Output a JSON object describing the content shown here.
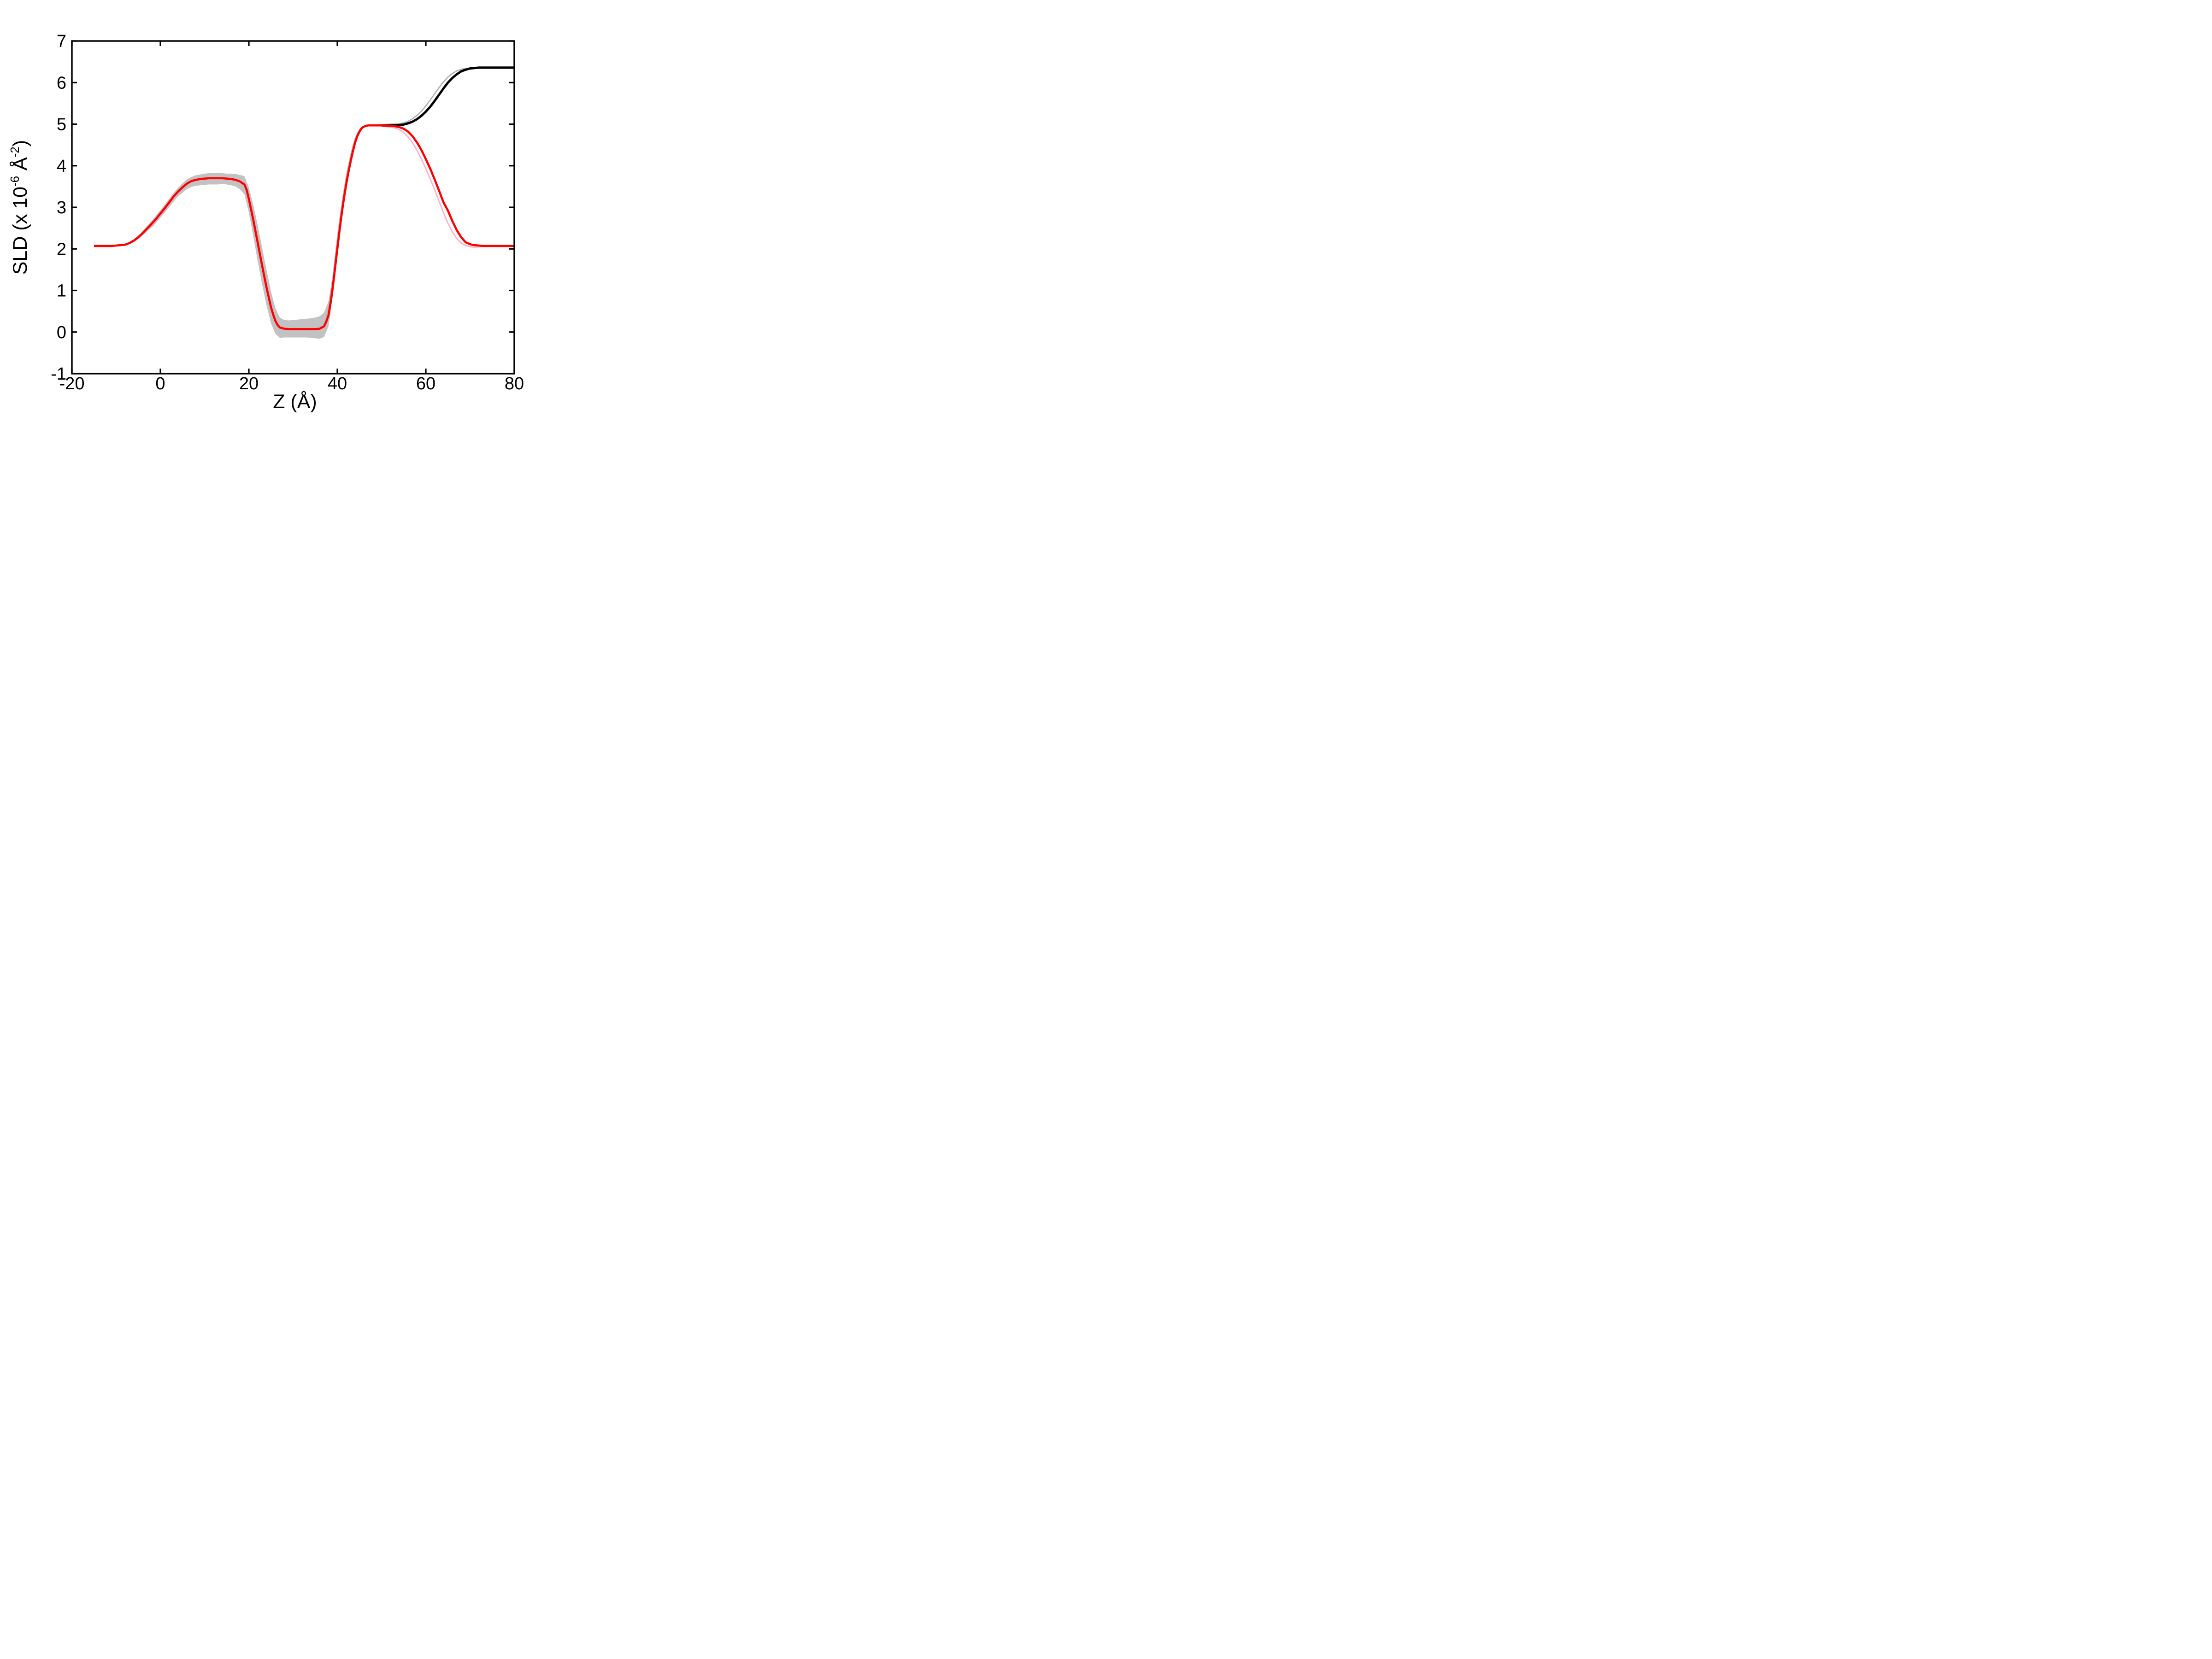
{
  "chart_data": {
    "type": "line",
    "title": "",
    "xlabel": "Z (Å)",
    "ylabel": "SLD (x 10-6 Å-2)",
    "ylabel_parts": {
      "prefix": "SLD (x 10",
      "sup1": "-6",
      "mid": " Å",
      "sup2": "-2",
      "suffix": ")"
    },
    "xlim": [
      -20,
      80
    ],
    "ylim": [
      -1,
      7
    ],
    "xticks": [
      -20,
      0,
      20,
      40,
      60,
      80
    ],
    "yticks": [
      -1,
      0,
      1,
      2,
      3,
      4,
      5,
      6,
      7
    ],
    "grid": false,
    "legend": null,
    "colors": {
      "red_profile": "#ff0000",
      "black_profile": "#000000",
      "pink_alt_profile": "#ffb0c4",
      "gray_alt_profile": "#b3b3b3",
      "uncertainty_band": "#c2c2c2",
      "axis": "#000000"
    },
    "band": {
      "x": [
        -8,
        -7,
        -6,
        -5,
        -4,
        -3,
        -2,
        -1,
        0,
        1,
        2,
        3,
        4,
        5,
        6,
        7,
        8,
        9,
        10,
        11,
        12,
        13,
        14,
        15,
        16,
        17,
        18,
        19,
        20,
        21,
        22,
        23,
        24,
        25,
        26,
        27,
        28,
        29,
        30,
        31,
        32,
        33,
        34,
        35,
        36,
        37,
        38,
        39,
        40,
        41,
        42,
        43,
        44
      ],
      "upper": [
        2.12,
        2.17,
        2.23,
        2.32,
        2.43,
        2.55,
        2.67,
        2.8,
        2.93,
        3.07,
        3.21,
        3.35,
        3.47,
        3.58,
        3.67,
        3.73,
        3.77,
        3.79,
        3.81,
        3.82,
        3.82,
        3.82,
        3.82,
        3.81,
        3.81,
        3.8,
        3.78,
        3.75,
        3.48,
        3.06,
        2.57,
        2.03,
        1.49,
        0.98,
        0.57,
        0.35,
        0.29,
        0.28,
        0.29,
        0.3,
        0.31,
        0.32,
        0.33,
        0.35,
        0.38,
        0.47,
        0.74,
        1.4,
        2.24,
        3.02,
        3.66,
        4.16,
        4.58
      ],
      "lower": [
        2.08,
        2.11,
        2.16,
        2.23,
        2.32,
        2.42,
        2.51,
        2.62,
        2.75,
        2.87,
        3.01,
        3.14,
        3.26,
        3.35,
        3.44,
        3.49,
        3.52,
        3.53,
        3.54,
        3.55,
        3.55,
        3.55,
        3.56,
        3.55,
        3.53,
        3.5,
        3.43,
        3.31,
        2.88,
        2.31,
        1.71,
        1.15,
        0.64,
        0.21,
        -0.04,
        -0.14,
        -0.13,
        -0.13,
        -0.13,
        -0.13,
        -0.13,
        -0.13,
        -0.14,
        -0.15,
        -0.16,
        -0.12,
        0.14,
        0.88,
        1.83,
        2.73,
        3.47,
        4.05,
        4.53
      ]
    },
    "series": [
      {
        "name": "gray-alt-profile",
        "color": "#b3b3b3",
        "width": 2.8,
        "points": [
          [
            37,
            0.2
          ],
          [
            37.5,
            0.32
          ],
          [
            38,
            0.55
          ],
          [
            38.5,
            0.9
          ],
          [
            39,
            1.3
          ],
          [
            39.5,
            1.77
          ],
          [
            40,
            2.22
          ],
          [
            40.5,
            2.65
          ],
          [
            41,
            3.03
          ],
          [
            41.5,
            3.38
          ],
          [
            42,
            3.7
          ],
          [
            42.5,
            3.98
          ],
          [
            43,
            4.22
          ],
          [
            43.5,
            4.45
          ],
          [
            44,
            4.63
          ],
          [
            44.5,
            4.77
          ],
          [
            45,
            4.86
          ],
          [
            45.5,
            4.92
          ],
          [
            46,
            4.95
          ],
          [
            47,
            4.97
          ],
          [
            48,
            4.98
          ],
          [
            50,
            4.99
          ],
          [
            52,
            5.0
          ],
          [
            54,
            5.01
          ],
          [
            55,
            5.03
          ],
          [
            56,
            5.07
          ],
          [
            57,
            5.13
          ],
          [
            58,
            5.21
          ],
          [
            59,
            5.31
          ],
          [
            60,
            5.44
          ],
          [
            61,
            5.58
          ],
          [
            62,
            5.73
          ],
          [
            63,
            5.88
          ],
          [
            64,
            6.02
          ],
          [
            65,
            6.13
          ],
          [
            66,
            6.22
          ],
          [
            67,
            6.28
          ],
          [
            68,
            6.32
          ],
          [
            69,
            6.34
          ],
          [
            70,
            6.35
          ],
          [
            71,
            6.36
          ],
          [
            72,
            6.36
          ],
          [
            74,
            6.36
          ],
          [
            76,
            6.36
          ],
          [
            78,
            6.36
          ],
          [
            80,
            6.36
          ]
        ]
      },
      {
        "name": "pink-alt-profile",
        "color": "#ffb0c4",
        "width": 2.8,
        "points": [
          [
            50,
            4.95
          ],
          [
            51,
            4.94
          ],
          [
            52,
            4.93
          ],
          [
            53,
            4.91
          ],
          [
            54,
            4.87
          ],
          [
            55,
            4.8
          ],
          [
            56,
            4.69
          ],
          [
            57,
            4.55
          ],
          [
            58,
            4.37
          ],
          [
            59,
            4.16
          ],
          [
            60,
            3.93
          ],
          [
            61,
            3.68
          ],
          [
            62,
            3.42
          ],
          [
            63,
            3.14
          ],
          [
            64,
            2.87
          ],
          [
            65,
            2.62
          ],
          [
            66,
            2.41
          ],
          [
            67,
            2.25
          ],
          [
            68,
            2.14
          ],
          [
            69,
            2.08
          ],
          [
            70,
            2.05
          ],
          [
            71,
            2.04
          ],
          [
            72,
            2.05
          ],
          [
            73,
            2.06
          ],
          [
            74,
            2.07
          ],
          [
            76,
            2.07
          ],
          [
            78,
            2.07
          ],
          [
            80,
            2.07
          ]
        ]
      },
      {
        "name": "black-profile",
        "color": "#000000",
        "width": 5.0,
        "points": [
          [
            50,
            4.97
          ],
          [
            52,
            4.97
          ],
          [
            54,
            4.98
          ],
          [
            55,
            4.99
          ],
          [
            56,
            5.02
          ],
          [
            57,
            5.06
          ],
          [
            58,
            5.12
          ],
          [
            59,
            5.2
          ],
          [
            60,
            5.3
          ],
          [
            61,
            5.42
          ],
          [
            62,
            5.56
          ],
          [
            63,
            5.71
          ],
          [
            64,
            5.86
          ],
          [
            65,
            6.0
          ],
          [
            66,
            6.11
          ],
          [
            67,
            6.2
          ],
          [
            68,
            6.27
          ],
          [
            69,
            6.31
          ],
          [
            70,
            6.34
          ],
          [
            71,
            6.35
          ],
          [
            72,
            6.36
          ],
          [
            74,
            6.36
          ],
          [
            76,
            6.36
          ],
          [
            78,
            6.36
          ],
          [
            80,
            6.36
          ]
        ]
      },
      {
        "name": "red-profile",
        "color": "#ff0000",
        "width": 4.6,
        "points": [
          [
            -15,
            2.07
          ],
          [
            -13,
            2.07
          ],
          [
            -11,
            2.07
          ],
          [
            -10,
            2.08
          ],
          [
            -9,
            2.09
          ],
          [
            -8,
            2.1
          ],
          [
            -7,
            2.14
          ],
          [
            -6,
            2.2
          ],
          [
            -5,
            2.28
          ],
          [
            -4,
            2.38
          ],
          [
            -3,
            2.49
          ],
          [
            -2,
            2.6
          ],
          [
            -1,
            2.72
          ],
          [
            0,
            2.85
          ],
          [
            1,
            2.98
          ],
          [
            2,
            3.12
          ],
          [
            3,
            3.26
          ],
          [
            4,
            3.38
          ],
          [
            5,
            3.48
          ],
          [
            6,
            3.57
          ],
          [
            7,
            3.63
          ],
          [
            8,
            3.66
          ],
          [
            9,
            3.68
          ],
          [
            10,
            3.69
          ],
          [
            11,
            3.7
          ],
          [
            12,
            3.7
          ],
          [
            14,
            3.7
          ],
          [
            15,
            3.69
          ],
          [
            16,
            3.68
          ],
          [
            17,
            3.66
          ],
          [
            18,
            3.62
          ],
          [
            19,
            3.55
          ],
          [
            19.5,
            3.42
          ],
          [
            20,
            3.2
          ],
          [
            21,
            2.7
          ],
          [
            22,
            2.15
          ],
          [
            23,
            1.6
          ],
          [
            24,
            1.07
          ],
          [
            25,
            0.6
          ],
          [
            25.5,
            0.42
          ],
          [
            26,
            0.27
          ],
          [
            26.5,
            0.17
          ],
          [
            27,
            0.11
          ],
          [
            28,
            0.08
          ],
          [
            29,
            0.07
          ],
          [
            31,
            0.07
          ],
          [
            33,
            0.07
          ],
          [
            35,
            0.07
          ],
          [
            36,
            0.08
          ],
          [
            37,
            0.14
          ],
          [
            37.5,
            0.25
          ],
          [
            38,
            0.4
          ],
          [
            38.5,
            0.72
          ],
          [
            39,
            1.1
          ],
          [
            39.5,
            1.55
          ],
          [
            40,
            2.0
          ],
          [
            40.5,
            2.44
          ],
          [
            41,
            2.85
          ],
          [
            41.5,
            3.22
          ],
          [
            42,
            3.55
          ],
          [
            42.5,
            3.84
          ],
          [
            43,
            4.1
          ],
          [
            43.5,
            4.34
          ],
          [
            44,
            4.55
          ],
          [
            44.5,
            4.71
          ],
          [
            45,
            4.82
          ],
          [
            45.5,
            4.9
          ],
          [
            46,
            4.94
          ],
          [
            46.5,
            4.96
          ],
          [
            47,
            4.97
          ],
          [
            48,
            4.97
          ],
          [
            50,
            4.97
          ],
          [
            52,
            4.96
          ],
          [
            53,
            4.95
          ],
          [
            54,
            4.93
          ],
          [
            55,
            4.89
          ],
          [
            56,
            4.82
          ],
          [
            57,
            4.71
          ],
          [
            58,
            4.56
          ],
          [
            59,
            4.38
          ],
          [
            60,
            4.16
          ],
          [
            61,
            3.93
          ],
          [
            62,
            3.67
          ],
          [
            63,
            3.4
          ],
          [
            64,
            3.12
          ],
          [
            65,
            2.92
          ],
          [
            66,
            2.67
          ],
          [
            67,
            2.45
          ],
          [
            68,
            2.28
          ],
          [
            69,
            2.16
          ],
          [
            70,
            2.11
          ],
          [
            71,
            2.09
          ],
          [
            72,
            2.08
          ],
          [
            73,
            2.07
          ],
          [
            74,
            2.07
          ],
          [
            76,
            2.07
          ],
          [
            78,
            2.07
          ],
          [
            80,
            2.07
          ]
        ]
      }
    ]
  }
}
